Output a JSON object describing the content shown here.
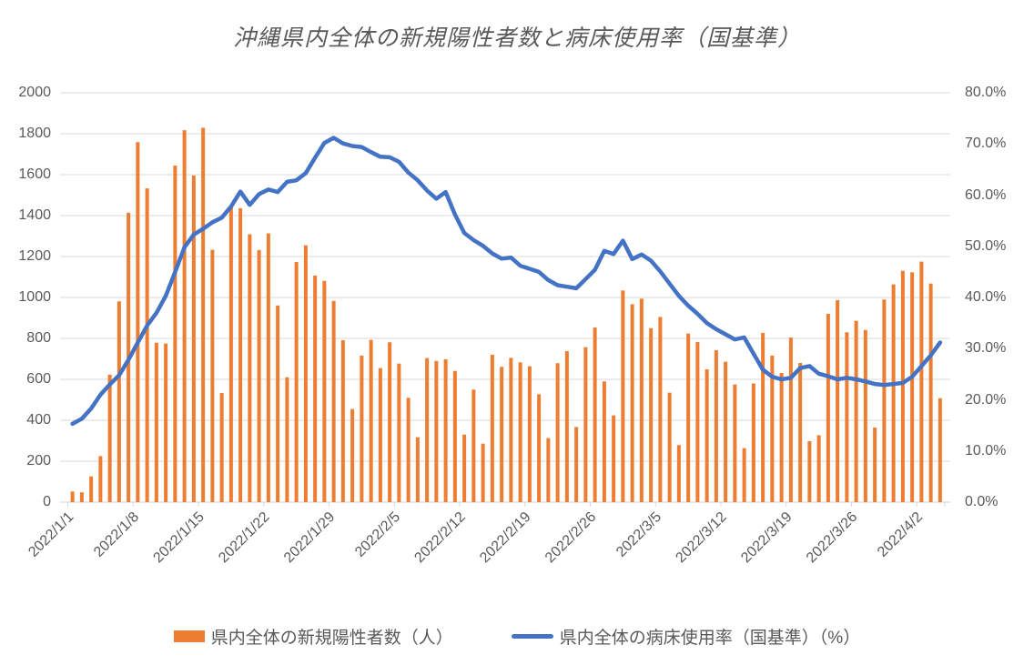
{
  "title": "沖縄県内全体の新規陽性者数と病床使用率（国基準）",
  "colors": {
    "bar": "#ED7D31",
    "line": "#4472C4",
    "grid": "#D9D9D9",
    "axis_text": "#595959"
  },
  "legend": {
    "items": [
      {
        "label": "県内全体の新規陽性者数（人）",
        "marker": "bar-swatch",
        "color": "#ED7D31"
      },
      {
        "label": "県内全体の病床使用率（国基準）（%）",
        "marker": "line-swatch",
        "color": "#4472C4"
      }
    ]
  },
  "chart_data": {
    "type": "combo bar+line, dual axis",
    "title": "沖縄県内全体の新規陽性者数と病床使用率（国基準）",
    "grid": true,
    "legend_position": "bottom",
    "left_axis": {
      "min": 0,
      "max": 2000,
      "step": 200,
      "labels": [
        "2000",
        "1800",
        "1600",
        "1400",
        "1200",
        "1000",
        "800",
        "600",
        "400",
        "200",
        "0"
      ]
    },
    "right_axis": {
      "min": 0,
      "max": 80,
      "step": 10,
      "labels": [
        "80.0%",
        "70.0%",
        "60.0%",
        "50.0%",
        "40.0%",
        "30.0%",
        "20.0%",
        "10.0%",
        "0.0%"
      ]
    },
    "x_tick_labels": [
      "2022/1/1",
      "2022/1/8",
      "2022/1/15",
      "2022/1/22",
      "2022/1/29",
      "2022/2/5",
      "2022/2/12",
      "2022/2/19",
      "2022/2/26",
      "2022/3/5",
      "2022/3/12",
      "2022/3/19",
      "2022/3/26",
      "2022/4/2"
    ],
    "x": [
      "2022/1/1",
      "2022/1/2",
      "2022/1/3",
      "2022/1/4",
      "2022/1/5",
      "2022/1/6",
      "2022/1/7",
      "2022/1/8",
      "2022/1/9",
      "2022/1/10",
      "2022/1/11",
      "2022/1/12",
      "2022/1/13",
      "2022/1/14",
      "2022/1/15",
      "2022/1/16",
      "2022/1/17",
      "2022/1/18",
      "2022/1/19",
      "2022/1/20",
      "2022/1/21",
      "2022/1/22",
      "2022/1/23",
      "2022/1/24",
      "2022/1/25",
      "2022/1/26",
      "2022/1/27",
      "2022/1/28",
      "2022/1/29",
      "2022/1/30",
      "2022/1/31",
      "2022/2/1",
      "2022/2/2",
      "2022/2/3",
      "2022/2/4",
      "2022/2/5",
      "2022/2/6",
      "2022/2/7",
      "2022/2/8",
      "2022/2/9",
      "2022/2/10",
      "2022/2/11",
      "2022/2/12",
      "2022/2/13",
      "2022/2/14",
      "2022/2/15",
      "2022/2/16",
      "2022/2/17",
      "2022/2/18",
      "2022/2/19",
      "2022/2/20",
      "2022/2/21",
      "2022/2/22",
      "2022/2/23",
      "2022/2/24",
      "2022/2/25",
      "2022/2/26",
      "2022/2/27",
      "2022/2/28",
      "2022/3/1",
      "2022/3/2",
      "2022/3/3",
      "2022/3/4",
      "2022/3/5",
      "2022/3/6",
      "2022/3/7",
      "2022/3/8",
      "2022/3/9",
      "2022/3/10",
      "2022/3/11",
      "2022/3/12",
      "2022/3/13",
      "2022/3/14",
      "2022/3/15",
      "2022/3/16",
      "2022/3/17",
      "2022/3/18",
      "2022/3/19",
      "2022/3/20",
      "2022/3/21",
      "2022/3/22",
      "2022/3/23",
      "2022/3/24",
      "2022/3/25",
      "2022/3/26",
      "2022/3/27",
      "2022/3/28",
      "2022/3/29",
      "2022/3/30",
      "2022/3/31",
      "2022/4/1",
      "2022/4/2",
      "2022/4/3",
      "2022/4/4"
    ],
    "series": [
      {
        "name": "県内全体の新規陽性者数（人）",
        "type": "bar",
        "axis": "left",
        "color": "#ED7D31",
        "values": [
          52,
          48,
          126,
          225,
          623,
          981,
          1414,
          1759,
          1533,
          779,
          775,
          1644,
          1817,
          1596,
          1829,
          1233,
          533,
          1443,
          1436,
          1309,
          1232,
          1313,
          961,
          610,
          1173,
          1255,
          1107,
          1081,
          983,
          791,
          455,
          716,
          793,
          655,
          781,
          677,
          510,
          317,
          704,
          690,
          698,
          641,
          330,
          550,
          286,
          720,
          661,
          705,
          683,
          664,
          527,
          313,
          679,
          738,
          367,
          757,
          853,
          590,
          424,
          1034,
          967,
          994,
          850,
          905,
          535,
          279,
          824,
          782,
          649,
          742,
          686,
          575,
          264,
          580,
          827,
          716,
          631,
          804,
          680,
          298,
          327,
          920,
          987,
          830,
          886,
          841,
          364,
          990,
          1064,
          1130,
          1123,
          1175,
          1068,
          508
        ]
      },
      {
        "name": "県内全体の病床使用率（国基準）（%）",
        "type": "line",
        "axis": "right",
        "color": "#4472C4",
        "values": [
          15.3,
          16.3,
          18.3,
          21.0,
          23.0,
          24.8,
          27.8,
          31.2,
          34.5,
          37.0,
          40.3,
          45.0,
          49.8,
          52.3,
          53.4,
          54.7,
          55.6,
          57.8,
          60.7,
          58.1,
          60.2,
          61.1,
          60.6,
          62.6,
          62.9,
          64.3,
          67.3,
          70.2,
          71.2,
          70.1,
          69.6,
          69.4,
          68.4,
          67.5,
          67.4,
          66.5,
          64.4,
          62.9,
          60.9,
          59.3,
          60.6,
          56.2,
          52.6,
          51.2,
          50.1,
          48.6,
          47.6,
          47.8,
          46.2,
          45.6,
          45.0,
          43.4,
          42.4,
          42.1,
          41.8,
          43.6,
          45.4,
          49.1,
          48.5,
          51.1,
          47.5,
          48.4,
          47.2,
          45.1,
          42.7,
          40.3,
          38.4,
          36.8,
          35.0,
          33.8,
          32.8,
          31.8,
          32.2,
          29.0,
          25.9,
          24.5,
          24.0,
          24.3,
          26.2,
          26.6,
          25.1,
          24.6,
          24.0,
          24.3,
          24.0,
          23.6,
          23.1,
          22.9,
          23.1,
          23.3,
          24.5,
          26.6,
          28.7,
          31.2
        ]
      }
    ]
  }
}
